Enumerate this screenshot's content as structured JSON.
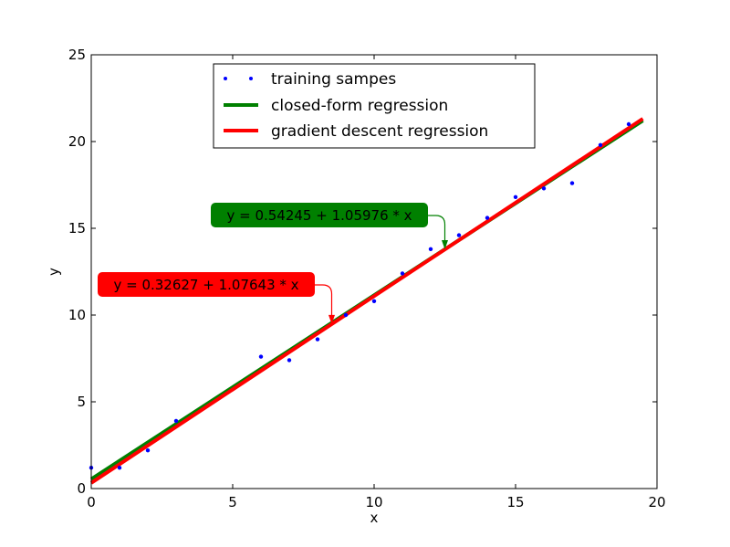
{
  "chart_data": {
    "type": "scatter",
    "xlabel": "x",
    "ylabel": "y",
    "xlim": [
      0,
      20
    ],
    "ylim": [
      0,
      25
    ],
    "xticks": [
      0,
      5,
      10,
      15,
      20
    ],
    "yticks": [
      0,
      5,
      10,
      15,
      20,
      25
    ],
    "grid": false,
    "legend_position": "top-center",
    "series": [
      {
        "name": "training sampes",
        "kind": "points",
        "color": "#0000ff",
        "x": [
          0,
          1,
          2,
          3,
          6,
          7,
          8,
          9,
          10,
          11,
          12,
          13,
          14,
          15,
          16,
          17,
          18,
          19
        ],
        "y": [
          1.2,
          1.2,
          2.2,
          3.9,
          7.6,
          7.4,
          8.6,
          10.0,
          10.8,
          12.4,
          13.8,
          14.6,
          15.6,
          16.8,
          17.3,
          17.6,
          19.8,
          21.0
        ]
      },
      {
        "name": "closed-form regression",
        "kind": "line",
        "color": "#008000",
        "intercept": 0.54245,
        "slope": 1.05976,
        "x_range": [
          0,
          19.5
        ]
      },
      {
        "name": "gradient descent regression",
        "kind": "line",
        "color": "#ff0000",
        "intercept": 0.32627,
        "slope": 1.07643,
        "x_range": [
          0,
          19.5
        ]
      }
    ],
    "annotations": [
      {
        "text": "y = 0.54245 + 1.05976 * x",
        "box_color": "#008000",
        "arrow_color": "#008000",
        "target_x": 12.5,
        "target_y": 13.79
      },
      {
        "text": "y = 0.32627 + 1.07643 * x",
        "box_color": "#ff0000",
        "arrow_color": "#ff0000",
        "target_x": 8.5,
        "target_y": 9.48
      }
    ]
  }
}
